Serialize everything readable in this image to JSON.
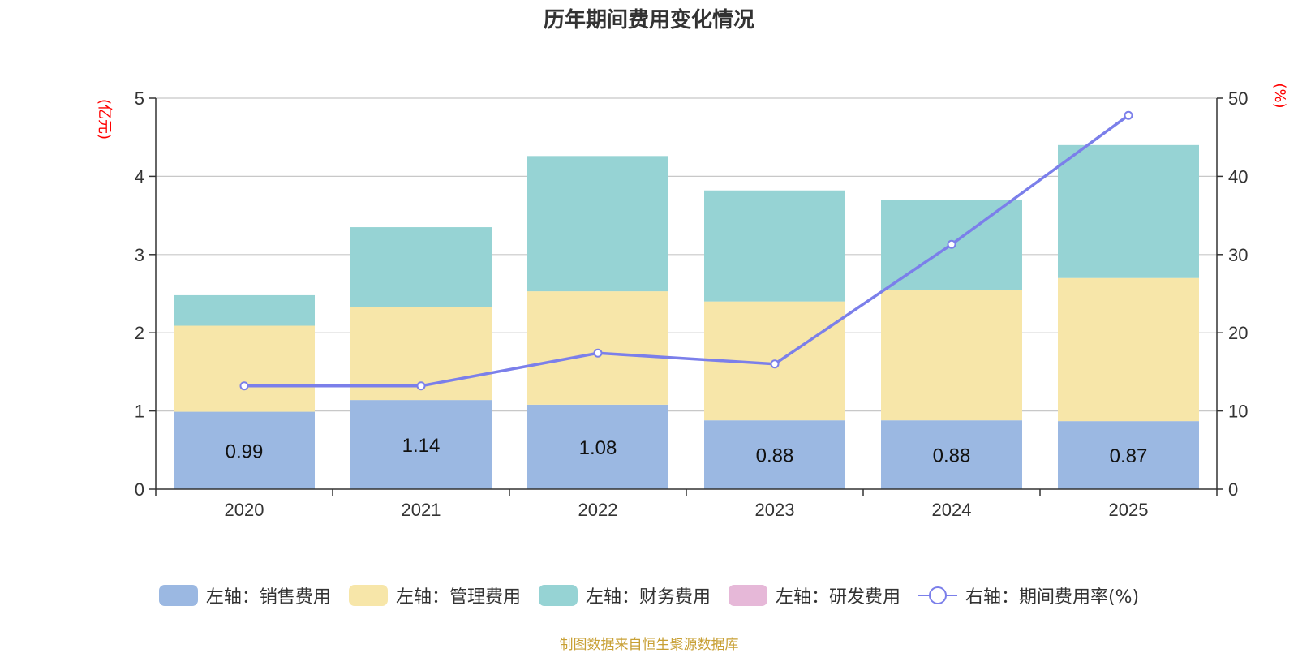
{
  "chart_data": {
    "type": "bar",
    "title": "历年期间费用变化情况",
    "categories": [
      "2020",
      "2021",
      "2022",
      "2023",
      "2024",
      "2025"
    ],
    "left_axis": {
      "unit_label": "(亿元)",
      "ylim": [
        0,
        5
      ],
      "ticks": [
        "0",
        "1",
        "2",
        "3",
        "4",
        "5"
      ]
    },
    "right_axis": {
      "unit_label": "(%)",
      "ylim": [
        0,
        50
      ],
      "ticks": [
        "0",
        "10",
        "20",
        "30",
        "40",
        "50"
      ]
    },
    "series": [
      {
        "name": "左轴：销售费用",
        "type": "bar",
        "axis": "left",
        "color": "#9bb8e2",
        "values": [
          0.99,
          1.14,
          1.08,
          0.88,
          0.88,
          0.87
        ],
        "labels": [
          "0.99",
          "1.14",
          "1.08",
          "0.88",
          "0.88",
          "0.87"
        ]
      },
      {
        "name": "左轴：管理费用",
        "type": "bar",
        "axis": "left",
        "color": "#f7e6a9",
        "values": [
          1.1,
          1.19,
          1.45,
          1.52,
          1.67,
          1.83
        ]
      },
      {
        "name": "左轴：财务费用",
        "type": "bar",
        "axis": "left",
        "color": "#96d3d4",
        "values": [
          0.39,
          1.02,
          1.73,
          1.42,
          1.15,
          1.7
        ]
      },
      {
        "name": "左轴：研发费用",
        "type": "bar",
        "axis": "left",
        "color": "#e6b8d8",
        "values": [
          0,
          0,
          0,
          0,
          0,
          0
        ]
      },
      {
        "name": "右轴：期间费用率(%)",
        "type": "line",
        "axis": "right",
        "color": "#7b7fea",
        "values": [
          13.2,
          13.2,
          17.4,
          16.0,
          31.3,
          47.8
        ]
      }
    ],
    "grid": true,
    "legend_position": "bottom"
  },
  "source": "制图数据来自恒生聚源数据库"
}
